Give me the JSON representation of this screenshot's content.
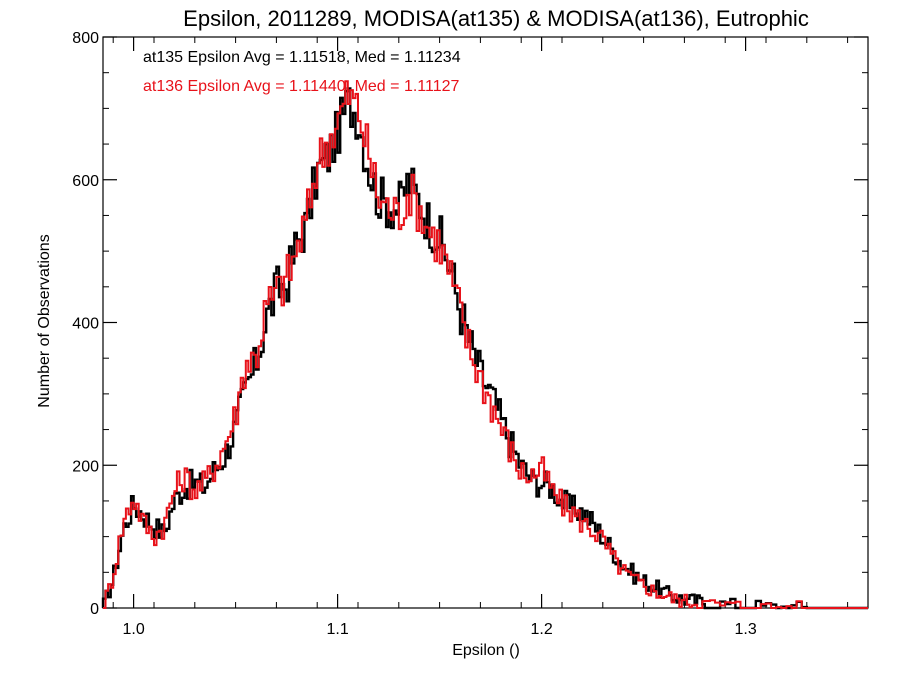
{
  "chart_data": {
    "type": "line",
    "title": "Epsilon, 2011289, MODISA(at135) & MODISA(at136), Eutrophic",
    "xlabel": "Epsilon ()",
    "ylabel": "Number of Observations",
    "xlim": [
      0.985,
      1.36
    ],
    "ylim": [
      0,
      800
    ],
    "x_ticks": [
      1.0,
      1.1,
      1.2,
      1.3
    ],
    "x_tick_labels": [
      "1.0",
      "1.1",
      "1.2",
      "1.3"
    ],
    "y_ticks": [
      0,
      200,
      400,
      600,
      800
    ],
    "y_tick_labels": [
      "0",
      "200",
      "400",
      "600",
      "800"
    ],
    "step_style": "histogram",
    "grid": false,
    "annotations": [
      {
        "text": "at135 Epsilon Avg = 1.11518, Med = 1.11234",
        "color": "#000000"
      },
      {
        "text": "at136 Epsilon Avg = 1.11440, Med = 1.11127",
        "color": "#e8121a"
      }
    ],
    "series": [
      {
        "color": "#000000",
        "x": [
          0.985,
          0.99,
          0.995,
          1.0,
          1.005,
          1.01,
          1.015,
          1.02,
          1.025,
          1.03,
          1.035,
          1.04,
          1.045,
          1.05,
          1.055,
          1.06,
          1.065,
          1.07,
          1.075,
          1.08,
          1.085,
          1.09,
          1.095,
          1.1,
          1.105,
          1.11,
          1.115,
          1.12,
          1.125,
          1.13,
          1.135,
          1.14,
          1.145,
          1.15,
          1.155,
          1.16,
          1.165,
          1.17,
          1.175,
          1.18,
          1.185,
          1.19,
          1.195,
          1.2,
          1.205,
          1.21,
          1.215,
          1.22,
          1.225,
          1.23,
          1.235,
          1.24,
          1.245,
          1.25,
          1.255,
          1.26,
          1.265,
          1.27,
          1.275,
          1.28,
          1.29,
          1.3,
          1.31,
          1.32,
          1.33,
          1.34,
          1.35,
          1.36
        ],
        "values": [
          0,
          40,
          110,
          145,
          130,
          115,
          105,
          150,
          170,
          175,
          170,
          195,
          215,
          255,
          305,
          340,
          405,
          445,
          455,
          510,
          540,
          610,
          630,
          665,
          710,
          690,
          620,
          575,
          565,
          560,
          600,
          570,
          540,
          520,
          480,
          420,
          370,
          330,
          300,
          265,
          230,
          200,
          180,
          175,
          170,
          150,
          140,
          135,
          120,
          100,
          80,
          60,
          48,
          38,
          30,
          22,
          16,
          12,
          10,
          8,
          5,
          3,
          2,
          1,
          0,
          0,
          0,
          0
        ]
      },
      {
        "color": "#e8121a",
        "x": [
          0.985,
          0.99,
          0.995,
          1.0,
          1.005,
          1.01,
          1.015,
          1.02,
          1.025,
          1.03,
          1.035,
          1.04,
          1.045,
          1.05,
          1.055,
          1.06,
          1.065,
          1.07,
          1.075,
          1.08,
          1.085,
          1.09,
          1.095,
          1.1,
          1.105,
          1.11,
          1.115,
          1.12,
          1.125,
          1.13,
          1.135,
          1.14,
          1.145,
          1.15,
          1.155,
          1.16,
          1.165,
          1.17,
          1.175,
          1.18,
          1.185,
          1.19,
          1.195,
          1.2,
          1.205,
          1.21,
          1.215,
          1.22,
          1.225,
          1.23,
          1.235,
          1.24,
          1.245,
          1.25,
          1.255,
          1.26,
          1.265,
          1.27,
          1.275,
          1.28,
          1.29,
          1.3,
          1.31,
          1.32,
          1.33,
          1.34,
          1.35,
          1.36
        ],
        "values": [
          0,
          45,
          120,
          155,
          120,
          100,
          115,
          165,
          185,
          165,
          175,
          200,
          230,
          270,
          345,
          350,
          420,
          440,
          460,
          500,
          545,
          625,
          650,
          680,
          720,
          700,
          640,
          575,
          560,
          550,
          585,
          560,
          530,
          510,
          470,
          415,
          360,
          325,
          290,
          255,
          220,
          190,
          185,
          195,
          165,
          145,
          135,
          120,
          110,
          95,
          70,
          52,
          40,
          32,
          24,
          18,
          13,
          10,
          8,
          6,
          4,
          2,
          1,
          1,
          0,
          0,
          0,
          0
        ]
      }
    ]
  }
}
